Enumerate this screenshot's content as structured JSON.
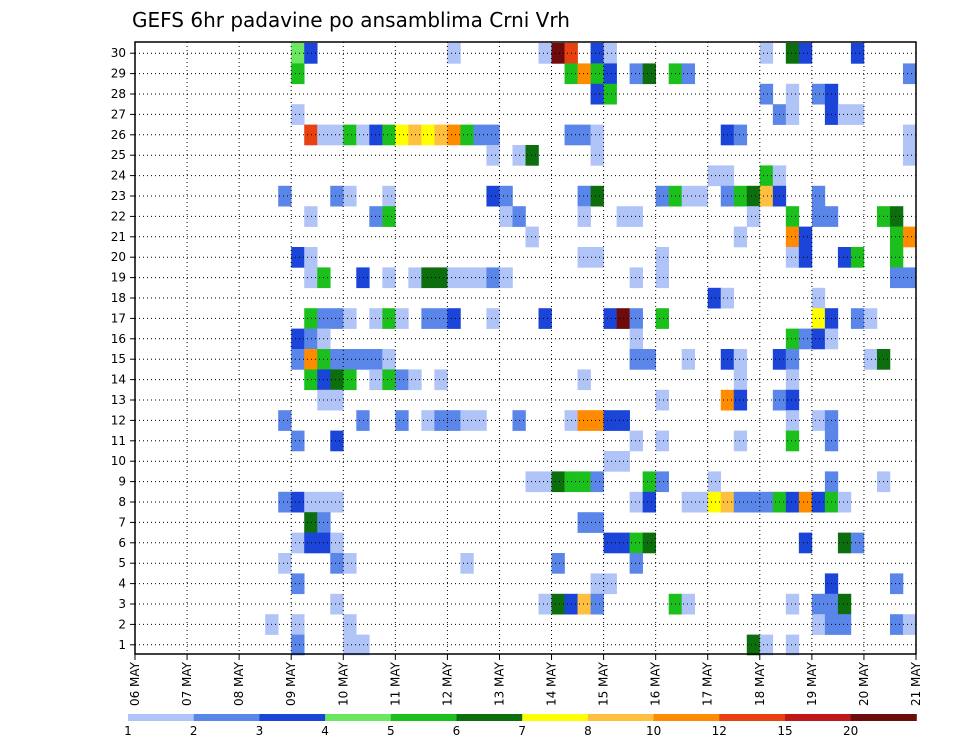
{
  "chart_data": {
    "type": "heatmap",
    "title": "GEFS 6hr padavine po ansamblima Crni Vrh",
    "xlabel": "",
    "ylabel": "",
    "x_ticks": [
      "06 MAY",
      "07 MAY",
      "08 MAY",
      "09 MAY",
      "10 MAY",
      "11 MAY",
      "12 MAY",
      "13 MAY",
      "14 MAY",
      "15 MAY",
      "16 MAY",
      "17 MAY",
      "18 MAY",
      "19 MAY",
      "20 MAY",
      "21 MAY"
    ],
    "y_ticks": [
      "1",
      "2",
      "3",
      "4",
      "5",
      "6",
      "7",
      "8",
      "9",
      "10",
      "11",
      "12",
      "13",
      "14",
      "15",
      "16",
      "17",
      "18",
      "19",
      "20",
      "21",
      "22",
      "23",
      "24",
      "25",
      "26",
      "27",
      "28",
      "29",
      "30"
    ],
    "x_unit": "6-hour step from 06 MAY 00Z",
    "y_unit": "ensemble member",
    "grid": true,
    "colorbar": {
      "labels": [
        "1",
        "2",
        "3",
        "4",
        "5",
        "6",
        "7",
        "8",
        "10",
        "12",
        "15",
        "20"
      ],
      "colors": [
        "#b0c4f8",
        "#5a86ea",
        "#1a45d8",
        "#6ce860",
        "#1cc01c",
        "#0c6e0c",
        "#ffff00",
        "#ffc040",
        "#ff8c00",
        "#e84010",
        "#c01818",
        "#6e0c0c"
      ]
    },
    "cells": [
      [
        30,
        12,
        4
      ],
      [
        30,
        13,
        3
      ],
      [
        30,
        24,
        1
      ],
      [
        30,
        31,
        1
      ],
      [
        30,
        32,
        12
      ],
      [
        30,
        33,
        10
      ],
      [
        30,
        35,
        3
      ],
      [
        30,
        36,
        1
      ],
      [
        30,
        48,
        1
      ],
      [
        30,
        50,
        6
      ],
      [
        30,
        51,
        3
      ],
      [
        30,
        55,
        3
      ],
      [
        29,
        12,
        5
      ],
      [
        29,
        33,
        5
      ],
      [
        29,
        34,
        9
      ],
      [
        29,
        35,
        5
      ],
      [
        29,
        36,
        3
      ],
      [
        29,
        38,
        2
      ],
      [
        29,
        39,
        6
      ],
      [
        29,
        41,
        5
      ],
      [
        29,
        42,
        2
      ],
      [
        29,
        59,
        2
      ],
      [
        28,
        35,
        3
      ],
      [
        28,
        36,
        5
      ],
      [
        28,
        48,
        2
      ],
      [
        28,
        50,
        1
      ],
      [
        28,
        52,
        2
      ],
      [
        28,
        53,
        3
      ],
      [
        27,
        12,
        1
      ],
      [
        27,
        49,
        2
      ],
      [
        27,
        50,
        1
      ],
      [
        27,
        53,
        3
      ],
      [
        27,
        54,
        1
      ],
      [
        27,
        55,
        1
      ],
      [
        26,
        13,
        10
      ],
      [
        26,
        14,
        1
      ],
      [
        26,
        15,
        1
      ],
      [
        26,
        16,
        5
      ],
      [
        26,
        17,
        1
      ],
      [
        26,
        18,
        3
      ],
      [
        26,
        19,
        5
      ],
      [
        26,
        20,
        7
      ],
      [
        26,
        21,
        8
      ],
      [
        26,
        22,
        7
      ],
      [
        26,
        23,
        8
      ],
      [
        26,
        24,
        9
      ],
      [
        26,
        25,
        5
      ],
      [
        26,
        26,
        2
      ],
      [
        26,
        27,
        2
      ],
      [
        26,
        33,
        2
      ],
      [
        26,
        34,
        2
      ],
      [
        26,
        35,
        1
      ],
      [
        26,
        45,
        3
      ],
      [
        26,
        46,
        2
      ],
      [
        26,
        59,
        1
      ],
      [
        25,
        27,
        1
      ],
      [
        25,
        29,
        1
      ],
      [
        25,
        30,
        6
      ],
      [
        25,
        35,
        1
      ],
      [
        25,
        59,
        1
      ],
      [
        24,
        44,
        1
      ],
      [
        24,
        45,
        1
      ],
      [
        24,
        48,
        5
      ],
      [
        24,
        49,
        1
      ],
      [
        23,
        11,
        2
      ],
      [
        23,
        15,
        2
      ],
      [
        23,
        16,
        1
      ],
      [
        23,
        19,
        1
      ],
      [
        23,
        27,
        3
      ],
      [
        23,
        28,
        2
      ],
      [
        23,
        34,
        2
      ],
      [
        23,
        35,
        6
      ],
      [
        23,
        40,
        2
      ],
      [
        23,
        41,
        5
      ],
      [
        23,
        42,
        1
      ],
      [
        23,
        43,
        1
      ],
      [
        23,
        45,
        2
      ],
      [
        23,
        46,
        5
      ],
      [
        23,
        47,
        6
      ],
      [
        23,
        48,
        8
      ],
      [
        23,
        49,
        3
      ],
      [
        23,
        52,
        2
      ],
      [
        22,
        13,
        1
      ],
      [
        22,
        18,
        2
      ],
      [
        22,
        19,
        5
      ],
      [
        22,
        28,
        1
      ],
      [
        22,
        29,
        2
      ],
      [
        22,
        34,
        1
      ],
      [
        22,
        37,
        1
      ],
      [
        22,
        38,
        1
      ],
      [
        22,
        47,
        1
      ],
      [
        22,
        50,
        5
      ],
      [
        22,
        52,
        2
      ],
      [
        22,
        53,
        2
      ],
      [
        22,
        57,
        5
      ],
      [
        22,
        58,
        6
      ],
      [
        21,
        30,
        1
      ],
      [
        21,
        46,
        1
      ],
      [
        21,
        50,
        9
      ],
      [
        21,
        51,
        3
      ],
      [
        21,
        58,
        5
      ],
      [
        21,
        59,
        9
      ],
      [
        20,
        12,
        3
      ],
      [
        20,
        13,
        1
      ],
      [
        20,
        34,
        1
      ],
      [
        20,
        35,
        1
      ],
      [
        20,
        40,
        1
      ],
      [
        20,
        50,
        1
      ],
      [
        20,
        51,
        3
      ],
      [
        20,
        54,
        3
      ],
      [
        20,
        55,
        5
      ],
      [
        20,
        58,
        5
      ],
      [
        19,
        13,
        1
      ],
      [
        19,
        14,
        5
      ],
      [
        19,
        17,
        3
      ],
      [
        19,
        19,
        1
      ],
      [
        19,
        21,
        1
      ],
      [
        19,
        22,
        6
      ],
      [
        19,
        23,
        6
      ],
      [
        19,
        24,
        1
      ],
      [
        19,
        25,
        1
      ],
      [
        19,
        26,
        1
      ],
      [
        19,
        27,
        2
      ],
      [
        19,
        28,
        1
      ],
      [
        19,
        38,
        1
      ],
      [
        19,
        40,
        1
      ],
      [
        19,
        58,
        2
      ],
      [
        19,
        59,
        2
      ],
      [
        18,
        44,
        3
      ],
      [
        18,
        45,
        1
      ],
      [
        18,
        52,
        1
      ],
      [
        17,
        13,
        5
      ],
      [
        17,
        14,
        2
      ],
      [
        17,
        15,
        2
      ],
      [
        17,
        16,
        1
      ],
      [
        17,
        18,
        1
      ],
      [
        17,
        19,
        5
      ],
      [
        17,
        20,
        1
      ],
      [
        17,
        22,
        2
      ],
      [
        17,
        23,
        2
      ],
      [
        17,
        24,
        3
      ],
      [
        17,
        27,
        1
      ],
      [
        17,
        31,
        3
      ],
      [
        17,
        36,
        3
      ],
      [
        17,
        37,
        12
      ],
      [
        17,
        38,
        2
      ],
      [
        17,
        40,
        5
      ],
      [
        17,
        52,
        7
      ],
      [
        17,
        53,
        3
      ],
      [
        17,
        55,
        2
      ],
      [
        17,
        56,
        1
      ],
      [
        16,
        12,
        3
      ],
      [
        16,
        13,
        2
      ],
      [
        16,
        14,
        1
      ],
      [
        16,
        38,
        1
      ],
      [
        16,
        50,
        5
      ],
      [
        16,
        51,
        2
      ],
      [
        16,
        52,
        3
      ],
      [
        16,
        53,
        1
      ],
      [
        15,
        12,
        2
      ],
      [
        15,
        13,
        9
      ],
      [
        15,
        14,
        5
      ],
      [
        15,
        15,
        2
      ],
      [
        15,
        16,
        2
      ],
      [
        15,
        17,
        2
      ],
      [
        15,
        18,
        2
      ],
      [
        15,
        19,
        1
      ],
      [
        15,
        38,
        2
      ],
      [
        15,
        39,
        2
      ],
      [
        15,
        42,
        1
      ],
      [
        15,
        45,
        3
      ],
      [
        15,
        46,
        1
      ],
      [
        15,
        49,
        3
      ],
      [
        15,
        50,
        2
      ],
      [
        15,
        56,
        1
      ],
      [
        15,
        57,
        6
      ],
      [
        14,
        13,
        5
      ],
      [
        14,
        14,
        3
      ],
      [
        14,
        15,
        6
      ],
      [
        14,
        16,
        5
      ],
      [
        14,
        18,
        1
      ],
      [
        14,
        19,
        5
      ],
      [
        14,
        20,
        2
      ],
      [
        14,
        21,
        1
      ],
      [
        14,
        23,
        1
      ],
      [
        14,
        34,
        1
      ],
      [
        14,
        46,
        1
      ],
      [
        14,
        50,
        1
      ],
      [
        13,
        14,
        1
      ],
      [
        13,
        15,
        1
      ],
      [
        13,
        40,
        1
      ],
      [
        13,
        45,
        9
      ],
      [
        13,
        46,
        3
      ],
      [
        13,
        49,
        2
      ],
      [
        13,
        50,
        3
      ],
      [
        12,
        11,
        2
      ],
      [
        12,
        17,
        2
      ],
      [
        12,
        20,
        2
      ],
      [
        12,
        22,
        1
      ],
      [
        12,
        23,
        2
      ],
      [
        12,
        24,
        2
      ],
      [
        12,
        25,
        1
      ],
      [
        12,
        26,
        1
      ],
      [
        12,
        29,
        2
      ],
      [
        12,
        33,
        1
      ],
      [
        12,
        34,
        9
      ],
      [
        12,
        35,
        9
      ],
      [
        12,
        36,
        3
      ],
      [
        12,
        37,
        3
      ],
      [
        12,
        50,
        1
      ],
      [
        12,
        52,
        1
      ],
      [
        12,
        53,
        2
      ],
      [
        11,
        12,
        2
      ],
      [
        11,
        15,
        3
      ],
      [
        11,
        38,
        1
      ],
      [
        11,
        40,
        1
      ],
      [
        11,
        46,
        1
      ],
      [
        11,
        50,
        5
      ],
      [
        11,
        53,
        2
      ],
      [
        10,
        36,
        1
      ],
      [
        10,
        37,
        1
      ],
      [
        9,
        30,
        1
      ],
      [
        9,
        31,
        1
      ],
      [
        9,
        32,
        6
      ],
      [
        9,
        33,
        5
      ],
      [
        9,
        34,
        5
      ],
      [
        9,
        35,
        2
      ],
      [
        9,
        39,
        5
      ],
      [
        9,
        40,
        2
      ],
      [
        9,
        44,
        1
      ],
      [
        9,
        53,
        2
      ],
      [
        9,
        57,
        1
      ],
      [
        8,
        11,
        2
      ],
      [
        8,
        12,
        3
      ],
      [
        8,
        13,
        1
      ],
      [
        8,
        14,
        1
      ],
      [
        8,
        15,
        1
      ],
      [
        8,
        38,
        1
      ],
      [
        8,
        39,
        3
      ],
      [
        8,
        42,
        1
      ],
      [
        8,
        43,
        1
      ],
      [
        8,
        44,
        7
      ],
      [
        8,
        45,
        8
      ],
      [
        8,
        46,
        2
      ],
      [
        8,
        47,
        2
      ],
      [
        8,
        48,
        2
      ],
      [
        8,
        49,
        5
      ],
      [
        8,
        50,
        3
      ],
      [
        8,
        51,
        9
      ],
      [
        8,
        52,
        3
      ],
      [
        8,
        53,
        5
      ],
      [
        8,
        54,
        1
      ],
      [
        7,
        13,
        6
      ],
      [
        7,
        14,
        2
      ],
      [
        7,
        34,
        2
      ],
      [
        7,
        35,
        2
      ],
      [
        6,
        12,
        1
      ],
      [
        6,
        13,
        3
      ],
      [
        6,
        14,
        3
      ],
      [
        6,
        15,
        1
      ],
      [
        6,
        36,
        3
      ],
      [
        6,
        37,
        3
      ],
      [
        6,
        38,
        5
      ],
      [
        6,
        39,
        6
      ],
      [
        6,
        51,
        3
      ],
      [
        6,
        54,
        6
      ],
      [
        6,
        55,
        2
      ],
      [
        5,
        11,
        1
      ],
      [
        5,
        15,
        2
      ],
      [
        5,
        16,
        1
      ],
      [
        5,
        25,
        1
      ],
      [
        5,
        32,
        2
      ],
      [
        5,
        38,
        2
      ],
      [
        4,
        12,
        2
      ],
      [
        4,
        35,
        1
      ],
      [
        4,
        36,
        1
      ],
      [
        4,
        53,
        3
      ],
      [
        4,
        58,
        2
      ],
      [
        3,
        15,
        1
      ],
      [
        3,
        31,
        1
      ],
      [
        3,
        32,
        6
      ],
      [
        3,
        33,
        3
      ],
      [
        3,
        34,
        8
      ],
      [
        3,
        35,
        2
      ],
      [
        3,
        41,
        5
      ],
      [
        3,
        42,
        1
      ],
      [
        3,
        50,
        1
      ],
      [
        3,
        52,
        2
      ],
      [
        3,
        53,
        2
      ],
      [
        3,
        54,
        6
      ],
      [
        2,
        10,
        1
      ],
      [
        2,
        12,
        1
      ],
      [
        2,
        16,
        1
      ],
      [
        2,
        52,
        1
      ],
      [
        2,
        53,
        2
      ],
      [
        2,
        54,
        2
      ],
      [
        2,
        58,
        2
      ],
      [
        2,
        59,
        1
      ],
      [
        1,
        12,
        2
      ],
      [
        1,
        16,
        1
      ],
      [
        1,
        17,
        1
      ],
      [
        1,
        47,
        6
      ],
      [
        1,
        48,
        1
      ],
      [
        1,
        50,
        1
      ]
    ]
  }
}
